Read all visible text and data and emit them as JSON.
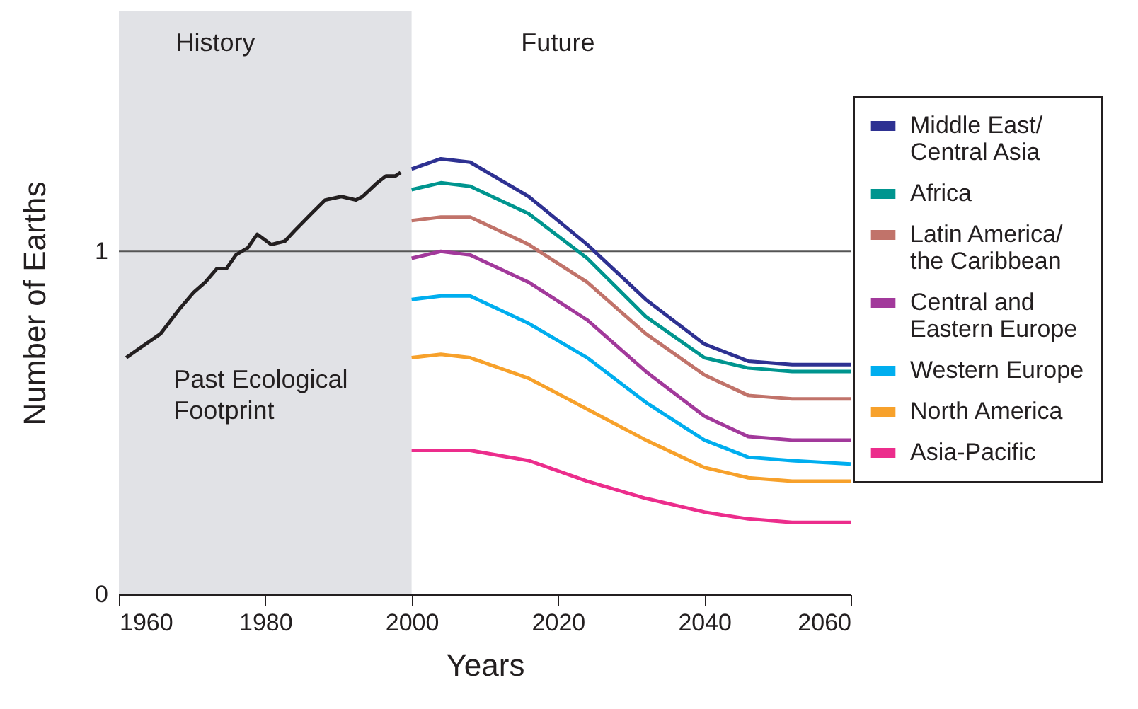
{
  "chart_data": {
    "type": "line",
    "xlabel": "Years",
    "ylabel": "Number of Earths",
    "xlim": [
      1960,
      2060
    ],
    "xticks": [
      1960,
      1980,
      2000,
      2020,
      2040,
      2060
    ],
    "ylim": [
      0,
      1.7
    ],
    "yticks": [
      0,
      1
    ],
    "legend": "right",
    "bands": [
      {
        "axis": "x",
        "from": 1960,
        "to": 2000,
        "label": "History",
        "color": "#e1e2e6"
      }
    ],
    "ref_lines": [
      {
        "axis": "y",
        "value": 1,
        "color": "#555555"
      }
    ],
    "annotations": [
      "Future",
      {
        "text": "Past Ecological Footprint",
        "x": 1964,
        "y": 0.71
      }
    ],
    "series": [
      {
        "color": "#231f20",
        "x": [
          1961,
          1963,
          1965.7,
          1968.2,
          1970.2,
          1971.8,
          1973.4,
          1974.7,
          1976,
          1977.6,
          1978.9,
          1980.8,
          1982.7,
          1984,
          1986.3,
          1988.2,
          1990.4,
          1992.4,
          1993.3,
          1995.3,
          1996.5,
          1997.8,
          1998.5
        ],
        "values": [
          0.69,
          0.72,
          0.76,
          0.83,
          0.88,
          0.91,
          0.95,
          0.95,
          0.99,
          1.01,
          1.05,
          1.02,
          1.03,
          1.06,
          1.11,
          1.15,
          1.16,
          1.15,
          1.16,
          1.2,
          1.22,
          1.22,
          1.23
        ]
      },
      {
        "name": "Middle East/ Central Asia",
        "color": "#2e3192",
        "x": [
          2000,
          2004,
          2008,
          2016,
          2024,
          2032,
          2040,
          2046,
          2052,
          2060
        ],
        "values": [
          1.24,
          1.27,
          1.26,
          1.16,
          1.02,
          0.86,
          0.73,
          0.68,
          0.67,
          0.67
        ]
      },
      {
        "name": "Africa",
        "color": "#00958f",
        "x": [
          2000,
          2004,
          2008,
          2016,
          2024,
          2032,
          2040,
          2046,
          2052,
          2060
        ],
        "values": [
          1.18,
          1.2,
          1.19,
          1.11,
          0.98,
          0.81,
          0.69,
          0.66,
          0.65,
          0.65
        ]
      },
      {
        "name": "Latin America/ the Caribbean",
        "color": "#c1736a",
        "x": [
          2000,
          2004,
          2008,
          2016,
          2024,
          2032,
          2040,
          2046,
          2052,
          2060
        ],
        "values": [
          1.09,
          1.1,
          1.1,
          1.02,
          0.91,
          0.76,
          0.64,
          0.58,
          0.57,
          0.57
        ]
      },
      {
        "name": "Central and Eastern Europe",
        "color": "#a2399b",
        "x": [
          2000,
          2004,
          2008,
          2016,
          2024,
          2032,
          2040,
          2046,
          2052,
          2060
        ],
        "values": [
          0.98,
          1.0,
          0.99,
          0.91,
          0.8,
          0.65,
          0.52,
          0.46,
          0.45,
          0.45
        ]
      },
      {
        "name": "Western Europe",
        "color": "#00aeef",
        "x": [
          2000,
          2004,
          2008,
          2016,
          2024,
          2032,
          2040,
          2046,
          2052,
          2060
        ],
        "values": [
          0.86,
          0.87,
          0.87,
          0.79,
          0.69,
          0.56,
          0.45,
          0.4,
          0.39,
          0.38
        ]
      },
      {
        "name": "North America",
        "color": "#f7a12b",
        "x": [
          2000,
          2004,
          2008,
          2016,
          2024,
          2032,
          2040,
          2046,
          2052,
          2060
        ],
        "values": [
          0.69,
          0.7,
          0.69,
          0.63,
          0.54,
          0.45,
          0.37,
          0.34,
          0.33,
          0.33
        ]
      },
      {
        "name": "Asia-Pacific",
        "color": "#ec2d8c",
        "x": [
          2000,
          2004,
          2008,
          2016,
          2024,
          2032,
          2040,
          2046,
          2052,
          2060
        ],
        "values": [
          0.42,
          0.42,
          0.42,
          0.39,
          0.33,
          0.28,
          0.24,
          0.22,
          0.21,
          0.21
        ]
      }
    ]
  }
}
